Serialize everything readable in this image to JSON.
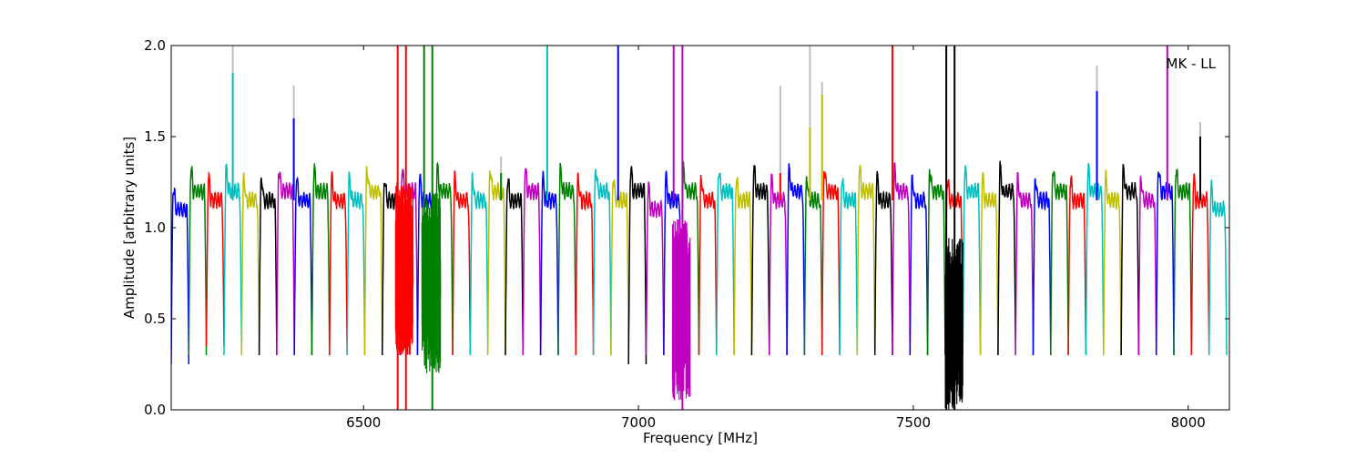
{
  "chart_data": {
    "type": "line",
    "title": "",
    "annotation": "MK - LL",
    "xlabel": "Frequency [MHz]",
    "ylabel": "Amplitude [arbitrary units]",
    "xlim": [
      6150,
      8075
    ],
    "ylim": [
      0.0,
      2.0
    ],
    "xticks": [
      6500,
      7000,
      7500,
      8000
    ],
    "yticks": [
      0.0,
      0.5,
      1.0,
      1.5,
      2.0
    ],
    "xtick_labels": [
      "6500",
      "7000",
      "7500",
      "8000"
    ],
    "ytick_labels": [
      "0.0",
      "0.5",
      "1.0",
      "1.5",
      "2.0"
    ],
    "grid": false,
    "legend": "none",
    "channel_width_mhz": 32,
    "color_cycle": [
      "#0000ff",
      "#008000",
      "#ff0000",
      "#00bfbf",
      "#bfbf00",
      "#000000",
      "#bf00bf"
    ],
    "shadow_color": "#bfbfbf",
    "channel_start_mhz": [
      6150,
      6182,
      6214,
      6246,
      6278,
      6310,
      6342,
      6374,
      6406,
      6438,
      6470,
      6502,
      6534,
      6566,
      6598,
      6630,
      6662,
      6694,
      6726,
      6758,
      6790,
      6822,
      6854,
      6886,
      6918,
      6950,
      6982,
      7014,
      7046,
      7078,
      7110,
      7142,
      7174,
      7206,
      7238,
      7270,
      7302,
      7334,
      7366,
      7398,
      7430,
      7462,
      7494,
      7526,
      7558,
      7590,
      7622,
      7654,
      7686,
      7718,
      7750,
      7782,
      7814,
      7846,
      7878,
      7910,
      7942,
      7974,
      8006,
      8038
    ],
    "channel_plateau_amplitude": [
      1.1,
      1.2,
      1.15,
      1.2,
      1.15,
      1.15,
      1.2,
      1.15,
      1.2,
      1.15,
      1.15,
      1.2,
      1.15,
      1.2,
      1.15,
      1.2,
      1.15,
      1.15,
      1.2,
      1.15,
      1.2,
      1.15,
      1.2,
      1.15,
      1.2,
      1.15,
      1.2,
      1.1,
      1.15,
      1.2,
      1.15,
      1.2,
      1.15,
      1.2,
      1.15,
      1.2,
      1.15,
      1.2,
      1.15,
      1.2,
      1.15,
      1.2,
      1.15,
      1.2,
      1.15,
      1.2,
      1.15,
      1.2,
      1.15,
      1.15,
      1.2,
      1.15,
      1.2,
      1.15,
      1.2,
      1.15,
      1.2,
      1.2,
      1.15,
      1.1
    ],
    "channel_dip_amplitude": [
      0.25,
      0.3,
      0.35,
      0.3,
      0.3,
      0.3,
      0.3,
      0.3,
      0.3,
      0.3,
      0.3,
      0.3,
      0.3,
      0.3,
      0.3,
      0.3,
      0.3,
      0.3,
      0.3,
      0.3,
      0.3,
      0.3,
      0.3,
      0.3,
      0.3,
      0.3,
      0.25,
      0.3,
      0.3,
      0.3,
      0.3,
      0.3,
      0.3,
      0.3,
      0.3,
      0.3,
      0.3,
      0.3,
      0.3,
      0.3,
      0.3,
      0.3,
      0.3,
      0.3,
      0.3,
      0.3,
      0.3,
      0.3,
      0.3,
      0.3,
      0.3,
      0.3,
      0.3,
      0.3,
      0.3,
      0.3,
      0.3,
      0.3,
      0.3,
      0.3
    ],
    "noisy_regions": [
      {
        "x_range": [
          6558,
          6590
        ],
        "y_range": [
          0.3,
          1.25
        ],
        "color": "#ff0000"
      },
      {
        "x_range": [
          6606,
          6640
        ],
        "y_range": [
          0.2,
          1.2
        ],
        "color": "#008000"
      },
      {
        "x_range": [
          7062,
          7094
        ],
        "y_range": [
          0.05,
          1.05
        ],
        "color": "#bf00bf"
      },
      {
        "x_range": [
          7558,
          7590
        ],
        "y_range": [
          0.0,
          0.95
        ],
        "color": "#000000"
      }
    ],
    "spikes": [
      {
        "x": 6262,
        "y": 1.85,
        "color": "#00bfbf",
        "shadow_y": 2.0
      },
      {
        "x": 6373,
        "y": 1.6,
        "color": "#0000ff",
        "shadow_y": 1.78
      },
      {
        "x": 6562,
        "y": 2.0,
        "y_low": 0.0,
        "color": "#ff0000"
      },
      {
        "x": 6577,
        "y": 2.0,
        "y_low": 0.0,
        "color": "#ff0000"
      },
      {
        "x": 6610,
        "y": 2.0,
        "color": "#008000"
      },
      {
        "x": 6625,
        "y": 2.0,
        "y_low": 0.0,
        "color": "#008000"
      },
      {
        "x": 6750,
        "y": 1.3,
        "color": "#008000",
        "shadow_y": 1.39
      },
      {
        "x": 6834,
        "y": 2.0,
        "color": "#00bfbf"
      },
      {
        "x": 6963,
        "y": 2.0,
        "color": "#0000ff"
      },
      {
        "x": 7064,
        "y": 2.0,
        "color": "#bf00bf"
      },
      {
        "x": 7080,
        "y": 2.0,
        "y_low": 0.0,
        "color": "#bf00bf"
      },
      {
        "x": 7258,
        "y": 1.3,
        "color": "#ff0000",
        "shadow_y": 1.78
      },
      {
        "x": 7312,
        "y": 1.55,
        "color": "#bfbf00",
        "shadow_y": 2.0
      },
      {
        "x": 7334,
        "y": 1.73,
        "color": "#bfbf00",
        "shadow_y": 1.8
      },
      {
        "x": 7462,
        "y": 2.0,
        "color": "#ff0000"
      },
      {
        "x": 7560,
        "y": 2.0,
        "y_low": 0.0,
        "color": "#000000"
      },
      {
        "x": 7575,
        "y": 2.0,
        "y_low": 0.0,
        "color": "#000000"
      },
      {
        "x": 7834,
        "y": 1.75,
        "color": "#0000ff",
        "shadow_y": 1.89
      },
      {
        "x": 7962,
        "y": 2.0,
        "color": "#bf00bf"
      },
      {
        "x": 8022,
        "y": 1.5,
        "color": "#000000",
        "shadow_y": 1.58
      }
    ]
  }
}
